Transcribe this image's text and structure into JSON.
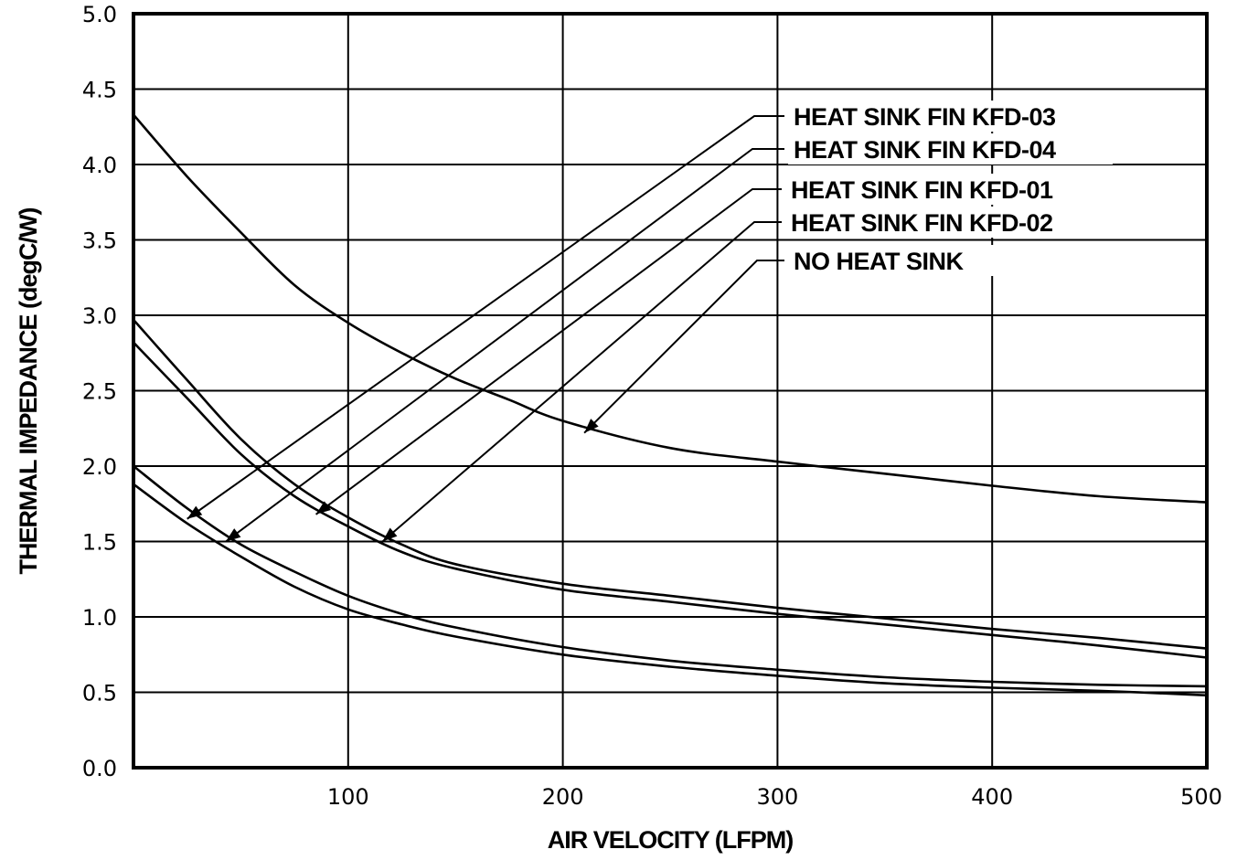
{
  "chart_data": {
    "type": "line",
    "title": "",
    "xlabel": "AIR VELOCITY (LFPM)",
    "ylabel": "THERMAL IMPEDANCE (degC/W)",
    "xlim": [
      0,
      500
    ],
    "ylim": [
      0,
      5
    ],
    "xticks": [
      100,
      200,
      300,
      400,
      500
    ],
    "xtick_labels": [
      "100",
      "200",
      "300",
      "400",
      "500"
    ],
    "yticks": [
      0,
      0.5,
      1,
      1.5,
      2,
      2.5,
      3,
      3.5,
      4,
      4.5,
      5
    ],
    "ytick_labels": [
      "0.0",
      "0.5",
      "1.0",
      "1.5",
      "2.0",
      "2.5",
      "3.0",
      "3.5",
      "4.0",
      "4.5",
      "5.0"
    ],
    "grid": true,
    "legend_placement": "top-right, leader lines with arrows to curves",
    "series": [
      {
        "name": "HEAT SINK FIN KFD-03",
        "x": [
          0,
          25,
          50,
          75,
          100,
          125,
          150,
          200,
          250,
          300,
          350,
          400,
          450,
          500
        ],
        "y": [
          2.0,
          1.72,
          1.48,
          1.3,
          1.14,
          1.02,
          0.93,
          0.8,
          0.71,
          0.65,
          0.6,
          0.57,
          0.55,
          0.54
        ],
        "arrow_at": [
          25,
          1.65
        ]
      },
      {
        "name": "HEAT SINK FIN KFD-04",
        "x": [
          0,
          25,
          50,
          75,
          100,
          125,
          150,
          200,
          250,
          300,
          350,
          400,
          450,
          500
        ],
        "y": [
          1.88,
          1.62,
          1.4,
          1.2,
          1.05,
          0.95,
          0.87,
          0.75,
          0.67,
          0.61,
          0.56,
          0.53,
          0.51,
          0.48
        ],
        "arrow_at": [
          43,
          1.5
        ]
      },
      {
        "name": "HEAT SINK FIN KFD-01",
        "x": [
          0,
          25,
          50,
          75,
          100,
          125,
          150,
          200,
          250,
          300,
          350,
          400,
          450,
          500
        ],
        "y": [
          2.82,
          2.45,
          2.08,
          1.8,
          1.6,
          1.43,
          1.32,
          1.18,
          1.1,
          1.02,
          0.95,
          0.88,
          0.81,
          0.73
        ],
        "arrow_at": [
          85,
          1.68
        ]
      },
      {
        "name": "HEAT SINK FIN KFD-02",
        "x": [
          0,
          25,
          50,
          75,
          100,
          125,
          150,
          200,
          250,
          300,
          350,
          400,
          450,
          500
        ],
        "y": [
          2.97,
          2.57,
          2.18,
          1.88,
          1.66,
          1.48,
          1.35,
          1.22,
          1.14,
          1.06,
          0.99,
          0.92,
          0.86,
          0.79
        ],
        "arrow_at": [
          116,
          1.5
        ]
      },
      {
        "name": "NO HEAT SINK",
        "x": [
          0,
          25,
          50,
          75,
          100,
          125,
          150,
          175,
          200,
          250,
          300,
          350,
          400,
          450,
          500
        ],
        "y": [
          4.33,
          3.92,
          3.55,
          3.2,
          2.95,
          2.75,
          2.58,
          2.44,
          2.3,
          2.12,
          2.03,
          1.95,
          1.87,
          1.8,
          1.76
        ],
        "arrow_at": [
          210,
          2.22
        ]
      }
    ]
  }
}
